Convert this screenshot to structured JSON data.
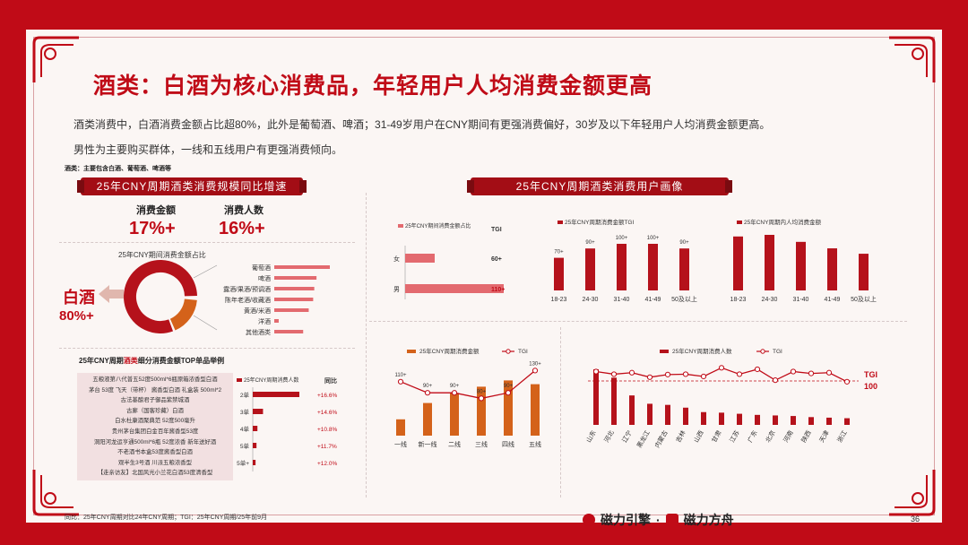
{
  "title": "酒类：白酒为核心消费品，年轻用户人均消费金额更高",
  "intro": [
    "酒类消费中，白酒消费金额占比超80%，此外是葡萄酒、啤酒；31-49岁用户在CNY期间有更强消费偏好，30岁及以下年轻用户人均消费金额更高。",
    "男性为主要购买群体，一线和五线用户有更强消费倾向。"
  ],
  "note": "酒类：主要包含白酒、葡萄酒、啤酒等",
  "left_banner": "25年CNY周期酒类消费规模同比增速",
  "right_banner": "25年CNY周期酒类消费用户画像",
  "kpis": [
    {
      "label": "消费金额",
      "value": "17%+"
    },
    {
      "label": "消费人数",
      "value": "16%+"
    }
  ],
  "donut": {
    "title": "25年CNY期间消费金额占比",
    "callout_label": "白酒",
    "callout_value": "80%+",
    "categories": [
      "葡萄酒",
      "啤酒",
      "露酒/果酒/预调酒",
      "陈年老酒/收藏酒",
      "黄酒/米酒",
      "洋酒",
      "其他酒类"
    ],
    "bar_values": [
      100,
      76,
      72,
      70,
      62,
      8,
      52
    ]
  },
  "top_list": {
    "title_a": "25年CNY周期",
    "title_b": "酒类",
    "title_c": "细分消费金额TOP单品举例",
    "items": [
      "五粮液第八代普五52度500ml*6瓶原箱浓香型白酒",
      "茅台 53度 飞天（带杯） 酱香型白酒 礼盒装 500ml*2",
      "古法基酿君子御品紫禁城酒",
      "古廊（国客珍藏）白酒",
      "白水杜康酒聚典范 52度500毫升",
      "贵州茅台集团白金百年酱香型53度",
      "洞阳河龙运亨通500ml*6瓶 52度浓香 新年送好酒",
      "不老酒书本盒53度酱香型白酒",
      "观半生3号酒 川派五粮浓香型",
      "【走亲访友】北国风光小兰花白酒53度清香型"
    ],
    "legend": "25年CNY周期消费人数",
    "yoy_title": "同比",
    "rank_labels": [
      "2单",
      "3单",
      "4单",
      "5单",
      "5单+"
    ],
    "counts": [
      100,
      22,
      10,
      8,
      6
    ],
    "yoy": [
      "+16.6%",
      "+14.6%",
      "+10.8%",
      "+11.7%",
      "+12.0%"
    ]
  },
  "gender_chart": {
    "legend": "25年CNY期间消费金额占比",
    "tgi_title": "TGI",
    "categories": [
      "女",
      "男"
    ],
    "values": [
      15,
      50
    ],
    "tgi": [
      "60+",
      "110+"
    ]
  },
  "age_tgi_chart": {
    "legend": "25年CNY周期消费金额TGI",
    "categories": [
      "18-23",
      "24-30",
      "31-40",
      "41-49",
      "50及以上"
    ],
    "values": [
      70,
      90,
      100,
      100,
      90
    ],
    "labels": [
      "70+",
      "90+",
      "100+",
      "100+",
      "90+"
    ]
  },
  "age_avg_chart": {
    "legend": "25年CNY周期内人均消费金额",
    "categories": [
      "18-23",
      "24-30",
      "31-40",
      "41-49",
      "50及以上"
    ],
    "values": [
      100,
      103,
      90,
      78,
      68
    ]
  },
  "city_chart": {
    "legend_bar": "25年CNY周期消费金额",
    "legend_line": "TGI",
    "categories": [
      "一线",
      "新一线",
      "二线",
      "三线",
      "四线",
      "五线"
    ],
    "values": [
      26,
      52,
      68,
      78,
      88,
      82
    ],
    "tgi": [
      110,
      90,
      90,
      80,
      90,
      130
    ],
    "tgi_labels": [
      "110+",
      "90+",
      "90+",
      "80+",
      "90+",
      "130+"
    ]
  },
  "province_chart": {
    "legend_bar": "25年CNY周期消费人数",
    "legend_line": "TGI",
    "tgi_line_label": "TGI",
    "tgi_line_value": "100",
    "categories": [
      "山东",
      "河北",
      "辽宁",
      "黑龙江",
      "内蒙古",
      "吉林",
      "山西",
      "甘肃",
      "江苏",
      "广东",
      "北京",
      "河南",
      "陕西",
      "天津",
      "浙江"
    ],
    "values": [
      100,
      85,
      53,
      38,
      36,
      31,
      23,
      22,
      20,
      18,
      17,
      16,
      14,
      13,
      12
    ],
    "tgi": [
      125,
      118,
      122,
      110,
      117,
      118,
      112,
      135,
      118,
      131,
      102,
      125,
      120,
      122,
      98
    ]
  },
  "footer": {
    "source": "同比：25年CNY周期对比24年CNY周期；TGI：25年CNY周期/25年前9月",
    "brand_a": "磁力引擎",
    "dot": "·",
    "brand_b": "磁力方舟",
    "page": "36"
  },
  "colors": {
    "accent": "#c00b17",
    "orange": "#d4621a",
    "bar_red": "#b5121b",
    "light_red": "#e36a6f"
  }
}
